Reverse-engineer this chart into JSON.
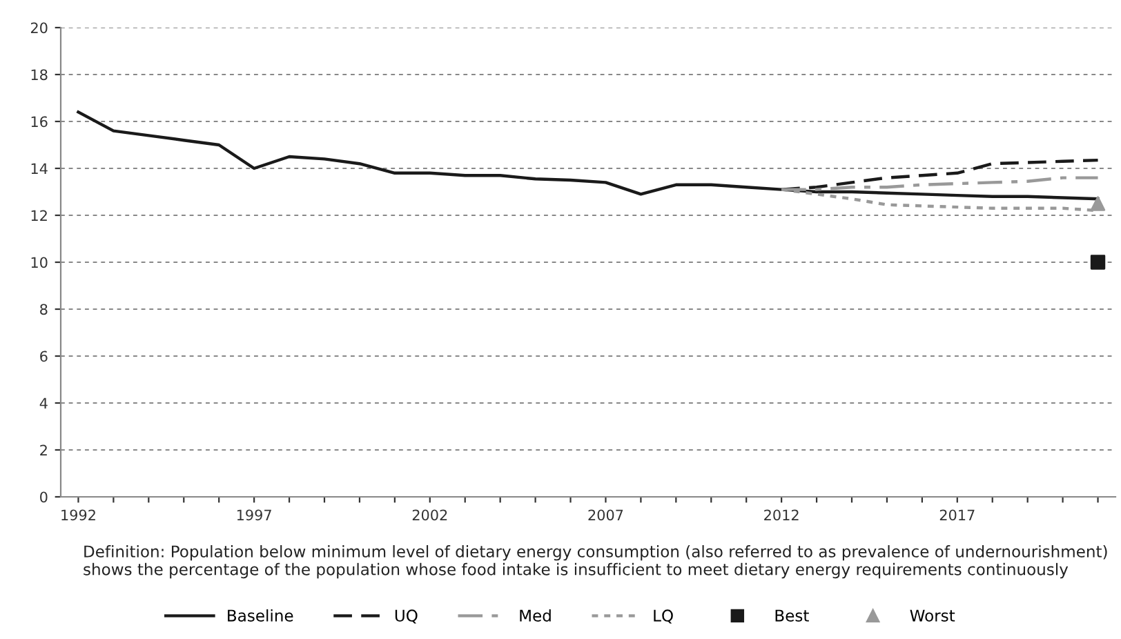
{
  "chart_data": {
    "type": "line",
    "x": [
      1992,
      1993,
      1994,
      1995,
      1996,
      1997,
      1998,
      1999,
      2000,
      2001,
      2002,
      2003,
      2004,
      2005,
      2006,
      2007,
      2008,
      2009,
      2010,
      2011,
      2012,
      2013,
      2014,
      2015,
      2016,
      2017,
      2018,
      2019,
      2020,
      2021
    ],
    "series": [
      {
        "name": "Baseline",
        "color": "#1a1a1a",
        "line_style": "solid",
        "values": [
          16.4,
          15.6,
          15.4,
          15.2,
          15.0,
          14.0,
          14.5,
          14.4,
          14.2,
          13.8,
          13.8,
          13.7,
          13.7,
          13.55,
          13.5,
          13.4,
          12.9,
          13.3,
          13.3,
          13.2,
          13.1,
          13.0,
          13.0,
          12.95,
          12.9,
          12.85,
          12.8,
          12.8,
          12.75,
          12.7
        ]
      },
      {
        "name": "UQ",
        "color": "#1a1a1a",
        "line_style": "dashed",
        "x": [
          2012,
          2013,
          2014,
          2015,
          2016,
          2017,
          2018,
          2019,
          2020,
          2021
        ],
        "values": [
          13.1,
          13.2,
          13.4,
          13.6,
          13.7,
          13.8,
          14.2,
          14.25,
          14.3,
          14.35
        ]
      },
      {
        "name": "Med",
        "color": "#999999",
        "line_style": "dashed",
        "x": [
          2012,
          2013,
          2014,
          2015,
          2016,
          2017,
          2018,
          2019,
          2020,
          2021
        ],
        "values": [
          13.1,
          13.1,
          13.2,
          13.2,
          13.3,
          13.35,
          13.4,
          13.45,
          13.6,
          13.6
        ]
      },
      {
        "name": "LQ",
        "color": "#999999",
        "line_style": "dotted",
        "x": [
          2012,
          2013,
          2014,
          2015,
          2016,
          2017,
          2018,
          2019,
          2020,
          2021
        ],
        "values": [
          13.1,
          12.9,
          12.7,
          12.45,
          12.4,
          12.35,
          12.3,
          12.3,
          12.3,
          12.2
        ]
      },
      {
        "name": "Best",
        "color": "#1a1a1a",
        "type": "scatter",
        "marker": "square",
        "x": [
          2021
        ],
        "values": [
          10
        ]
      },
      {
        "name": "Worst",
        "color": "#999999",
        "type": "scatter",
        "marker": "triangle",
        "x": [
          2021
        ],
        "values": [
          12.5
        ]
      }
    ],
    "xlim": [
      1991.5,
      2021.5
    ],
    "xticks": [
      {
        "value": 1992,
        "label": "1992"
      },
      {
        "value": 1993,
        "label": null
      },
      {
        "value": 1994,
        "label": null
      },
      {
        "value": 1995,
        "label": null
      },
      {
        "value": 1996,
        "label": null
      },
      {
        "value": 1997,
        "label": "1997"
      },
      {
        "value": 1998,
        "label": null
      },
      {
        "value": 1999,
        "label": null
      },
      {
        "value": 2000,
        "label": null
      },
      {
        "value": 2001,
        "label": null
      },
      {
        "value": 2002,
        "label": "2002"
      },
      {
        "value": 2003,
        "label": null
      },
      {
        "value": 2004,
        "label": null
      },
      {
        "value": 2005,
        "label": null
      },
      {
        "value": 2006,
        "label": null
      },
      {
        "value": 2007,
        "label": "2007"
      },
      {
        "value": 2008,
        "label": null
      },
      {
        "value": 2009,
        "label": null
      },
      {
        "value": 2010,
        "label": null
      },
      {
        "value": 2011,
        "label": null
      },
      {
        "value": 2012,
        "label": "2012"
      },
      {
        "value": 2013,
        "label": null
      },
      {
        "value": 2014,
        "label": null
      },
      {
        "value": 2015,
        "label": null
      },
      {
        "value": 2016,
        "label": null
      },
      {
        "value": 2017,
        "label": "2017"
      },
      {
        "value": 2018,
        "label": null
      },
      {
        "value": 2019,
        "label": null
      },
      {
        "value": 2020,
        "label": null
      },
      {
        "value": 2021,
        "label": null
      }
    ],
    "ylim": [
      0,
      20
    ],
    "yticks": [
      0,
      2,
      4,
      6,
      8,
      10,
      12,
      14,
      16,
      18,
      20
    ],
    "grid": "y",
    "legend": "bottom",
    "annotations": [
      "Definition: Population below minimum level of dietary energy consumption (also referred to as prevalence of undernourishment) shows the percentage of the population whose food intake is insufficient to meet dietary energy requirements continuously"
    ]
  }
}
